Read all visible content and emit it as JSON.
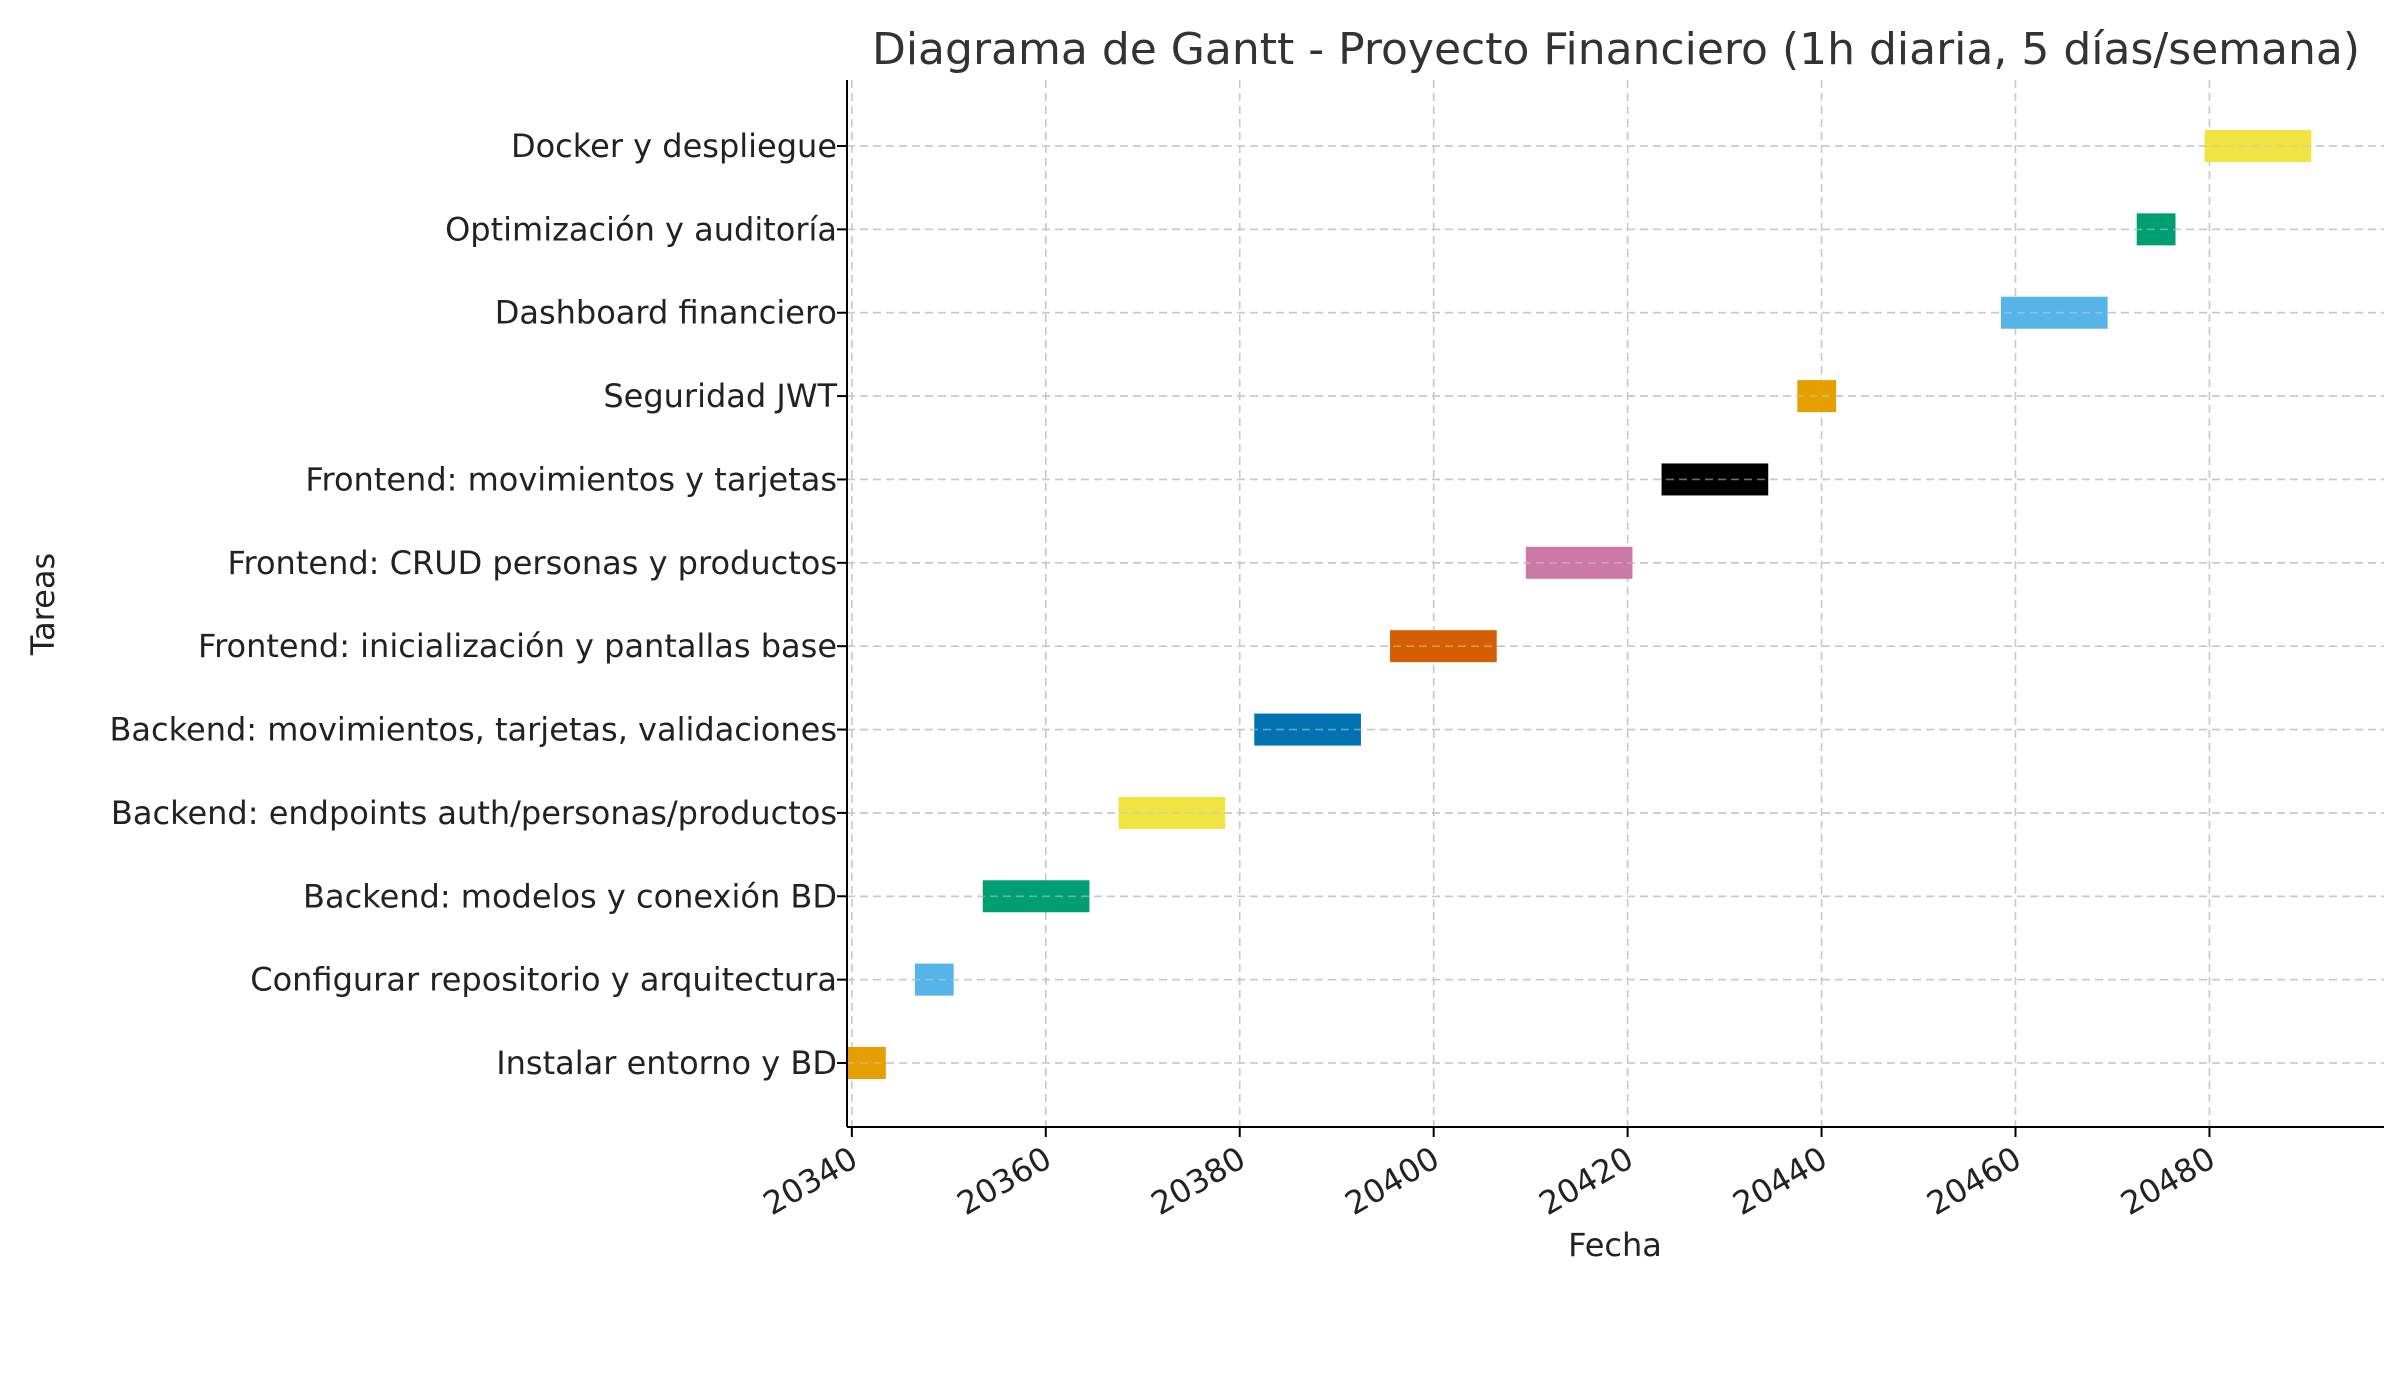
{
  "chart_data": {
    "type": "bar",
    "orientation": "horizontal",
    "title": "Diagrama de Gantt - Proyecto Financiero (1h diaria, 5 días/semana)",
    "xlabel": "Fecha",
    "ylabel": "Tareas",
    "xlim": [
      20339.5,
      20498
    ],
    "xticks": [
      20340,
      20360,
      20380,
      20400,
      20420,
      20440,
      20460,
      20480
    ],
    "grid": true,
    "tasks": [
      {
        "name": "Instalar entorno y BD",
        "start": 20339.5,
        "end": 20343.5,
        "color": "#E69F00"
      },
      {
        "name": "Configurar repositorio y arquitectura",
        "start": 20346.5,
        "end": 20350.5,
        "color": "#56B4E9"
      },
      {
        "name": "Backend: modelos y conexión BD",
        "start": 20353.5,
        "end": 20364.5,
        "color": "#009E73"
      },
      {
        "name": "Backend: endpoints auth/personas/productos",
        "start": 20367.5,
        "end": 20378.5,
        "color": "#F0E442"
      },
      {
        "name": "Backend: movimientos, tarjetas, validaciones",
        "start": 20381.5,
        "end": 20392.5,
        "color": "#0072B2"
      },
      {
        "name": "Frontend: inicialización y pantallas base",
        "start": 20395.5,
        "end": 20406.5,
        "color": "#D55E00"
      },
      {
        "name": "Frontend: CRUD personas y productos",
        "start": 20409.5,
        "end": 20420.5,
        "color": "#CC79A7"
      },
      {
        "name": "Frontend: movimientos y tarjetas",
        "start": 20423.5,
        "end": 20434.5,
        "color": "#000000"
      },
      {
        "name": "Seguridad JWT",
        "start": 20437.5,
        "end": 20441.5,
        "color": "#E69F00"
      },
      {
        "name": "Dashboard financiero",
        "start": 20458.5,
        "end": 20469.5,
        "color": "#56B4E9"
      },
      {
        "name": "Optimización y auditoría",
        "start": 20472.5,
        "end": 20476.5,
        "color": "#009E73"
      },
      {
        "name": "Docker y despliegue",
        "start": 20479.5,
        "end": 20490.5,
        "color": "#F0E442"
      }
    ]
  }
}
